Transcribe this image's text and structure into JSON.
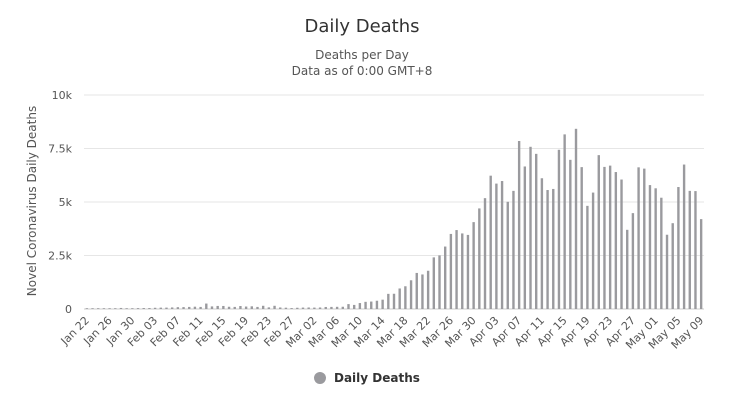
{
  "chart_data": {
    "type": "bar",
    "title": "Daily Deaths",
    "subtitle_lines": [
      "Deaths per Day",
      "Data as of 0:00 GMT+8"
    ],
    "ylabel": "Novel Coronavirus Daily Deaths",
    "xlabel": "",
    "ylim": [
      0,
      10000
    ],
    "yticks": [
      {
        "value": 0,
        "label": "0"
      },
      {
        "value": 2500,
        "label": "2.5k"
      },
      {
        "value": 5000,
        "label": "5k"
      },
      {
        "value": 7500,
        "label": "7.5k"
      },
      {
        "value": 10000,
        "label": "10k"
      }
    ],
    "bar_color": "#9a9a9e",
    "grid_color": "#e6e6e6",
    "start_date": "Jan 22",
    "categories": [
      "Jan 22",
      "Jan 23",
      "Jan 24",
      "Jan 25",
      "Jan 26",
      "Jan 27",
      "Jan 28",
      "Jan 29",
      "Jan 30",
      "Jan 31",
      "Feb 01",
      "Feb 02",
      "Feb 03",
      "Feb 04",
      "Feb 05",
      "Feb 06",
      "Feb 07",
      "Feb 08",
      "Feb 09",
      "Feb 10",
      "Feb 11",
      "Feb 12",
      "Feb 13",
      "Feb 14",
      "Feb 15",
      "Feb 16",
      "Feb 17",
      "Feb 18",
      "Feb 19",
      "Feb 20",
      "Feb 21",
      "Feb 22",
      "Feb 23",
      "Feb 24",
      "Feb 25",
      "Feb 26",
      "Feb 27",
      "Feb 28",
      "Feb 29",
      "Mar 01",
      "Mar 02",
      "Mar 03",
      "Mar 04",
      "Mar 05",
      "Mar 06",
      "Mar 07",
      "Mar 08",
      "Mar 09",
      "Mar 10",
      "Mar 11",
      "Mar 12",
      "Mar 13",
      "Mar 14",
      "Mar 15",
      "Mar 16",
      "Mar 17",
      "Mar 18",
      "Mar 19",
      "Mar 20",
      "Mar 21",
      "Mar 22",
      "Mar 23",
      "Mar 24",
      "Mar 25",
      "Mar 26",
      "Mar 27",
      "Mar 28",
      "Mar 29",
      "Mar 30",
      "Mar 31",
      "Apr 01",
      "Apr 02",
      "Apr 03",
      "Apr 04",
      "Apr 05",
      "Apr 06",
      "Apr 07",
      "Apr 08",
      "Apr 09",
      "Apr 10",
      "Apr 11",
      "Apr 12",
      "Apr 13",
      "Apr 14",
      "Apr 15",
      "Apr 16",
      "Apr 17",
      "Apr 18",
      "Apr 19",
      "Apr 20",
      "Apr 21",
      "Apr 22",
      "Apr 23",
      "Apr 24",
      "Apr 25",
      "Apr 26",
      "Apr 27",
      "Apr 28",
      "Apr 29",
      "Apr 30",
      "May 01",
      "May 02",
      "May 03",
      "May 04",
      "May 05",
      "May 06",
      "May 07",
      "May 08",
      "May 09"
    ],
    "xtick_labels": [
      "Jan 22",
      "Jan 26",
      "Jan 30",
      "Feb 03",
      "Feb 07",
      "Feb 11",
      "Feb 15",
      "Feb 19",
      "Feb 23",
      "Feb 27",
      "Mar 02",
      "Mar 06",
      "Mar 10",
      "Mar 14",
      "Mar 18",
      "Mar 22",
      "Mar 26",
      "Mar 30",
      "Apr 03",
      "Apr 07",
      "Apr 11",
      "Apr 15",
      "Apr 19",
      "Apr 23",
      "Apr 27",
      "May 01",
      "May 05",
      "May 09"
    ],
    "series": [
      {
        "name": "Daily Deaths",
        "values": [
          17,
          1,
          8,
          16,
          14,
          26,
          49,
          2,
          38,
          42,
          46,
          45,
          57,
          64,
          65,
          73,
          86,
          89,
          97,
          108,
          97,
          254,
          121,
          143,
          142,
          105,
          98,
          139,
          115,
          125,
          97,
          150,
          76,
          150,
          71,
          61,
          44,
          58,
          67,
          71,
          66,
          71,
          95,
          98,
          102,
          105,
          229,
          191,
          278,
          335,
          348,
          386,
          436,
          708,
          712,
          959,
          1062,
          1342,
          1685,
          1614,
          1787,
          2412,
          2505,
          2918,
          3508,
          3689,
          3531,
          3462,
          4060,
          4700,
          5180,
          6230,
          5860,
          5980,
          5010,
          5520,
          7850,
          6660,
          7580,
          7250,
          6110,
          5560,
          5610,
          7440,
          8160,
          6970,
          8420,
          6630,
          4820,
          5440,
          7190,
          6640,
          6700,
          6400,
          6050,
          3700,
          4480,
          6620,
          6560,
          5790,
          5640,
          5200,
          3470,
          4010,
          5700,
          6750,
          5520,
          5510,
          4200
        ]
      }
    ],
    "legend": {
      "position": "bottom-center",
      "label": "Daily Deaths"
    }
  }
}
